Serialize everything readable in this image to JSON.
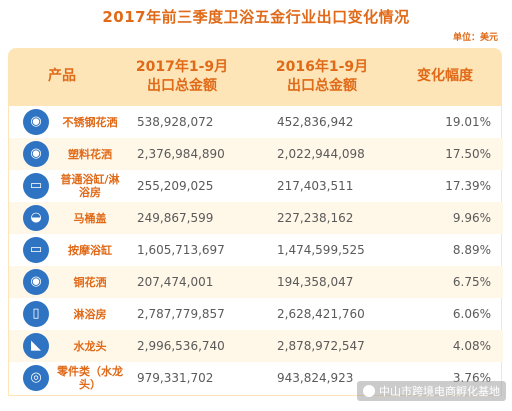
{
  "title": "2017年前三季度卫浴五金行业出口变化情况",
  "unit": "单位：美元",
  "headers": {
    "product": "产品",
    "y2017_line1": "2017年1-9月",
    "y2017_line2": "出口总金额",
    "y2016_line1": "2016年1-9月",
    "y2016_line2": "出口总金额",
    "change": "变化幅度"
  },
  "rows": [
    {
      "product": "不锈钢花洒",
      "v2017": "538,928,072",
      "v2016": "452,836,942",
      "change": "19.01%"
    },
    {
      "product": "塑料花洒",
      "v2017": "2,376,984,890",
      "v2016": "2,022,944,098",
      "change": "17.50%"
    },
    {
      "product": "普通浴缸/淋浴房",
      "v2017": "255,209,025",
      "v2016": "217,403,511",
      "change": "17.39%"
    },
    {
      "product": "马桶盖",
      "v2017": "249,867,599",
      "v2016": "227,238,162",
      "change": "9.96%"
    },
    {
      "product": "按摩浴缸",
      "v2017": "1,605,713,697",
      "v2016": "1,474,599,525",
      "change": "8.89%"
    },
    {
      "product": "铜花洒",
      "v2017": "207,474,001",
      "v2016": "194,358,047",
      "change": "6.75%"
    },
    {
      "product": "淋浴房",
      "v2017": "2,787,779,857",
      "v2016": "2,628,421,760",
      "change": "6.06%"
    },
    {
      "product": "水龙头",
      "v2017": "2,996,536,740",
      "v2016": "2,878,972,547",
      "change": "4.08%"
    },
    {
      "product": "零件类（水龙头）",
      "v2017": "979,331,702",
      "v2016": "943,824,923",
      "change": "3.76%"
    }
  ],
  "watermark": "中山市跨境电商孵化基地",
  "chart_data": {
    "type": "table",
    "title": "2017年前三季度卫浴五金行业出口变化情况",
    "unit": "美元",
    "columns": [
      "产品",
      "2017年1-9月出口总金额",
      "2016年1-9月出口总金额",
      "变化幅度"
    ],
    "categories": [
      "不锈钢花洒",
      "塑料花洒",
      "普通浴缸/淋浴房",
      "马桶盖",
      "按摩浴缸",
      "铜花洒",
      "淋浴房",
      "水龙头",
      "零件类（水龙头）"
    ],
    "series": [
      {
        "name": "2017年1-9月出口总金额",
        "values": [
          538928072,
          2376984890,
          255209025,
          249867599,
          1605713697,
          207474001,
          2787779857,
          2996536740,
          979331702
        ]
      },
      {
        "name": "2016年1-9月出口总金额",
        "values": [
          452836942,
          2022944098,
          217403511,
          227238162,
          1474599525,
          194358047,
          2628421760,
          2878972547,
          943824923
        ]
      },
      {
        "name": "变化幅度",
        "values": [
          19.01,
          17.5,
          17.39,
          9.96,
          8.89,
          6.75,
          6.06,
          4.08,
          3.76
        ]
      }
    ]
  },
  "icons": [
    "shower-head-icon",
    "shower-head-icon",
    "bathtub-icon",
    "toilet-icon",
    "massage-bathtub-icon",
    "shower-head-icon",
    "shower-room-icon",
    "faucet-icon",
    "faucet-part-icon"
  ],
  "colors": {
    "accent": "#e06a18",
    "header_bg": "#fde5b8",
    "row_alt": "#fff7e8",
    "icon": "#2f73c3"
  }
}
